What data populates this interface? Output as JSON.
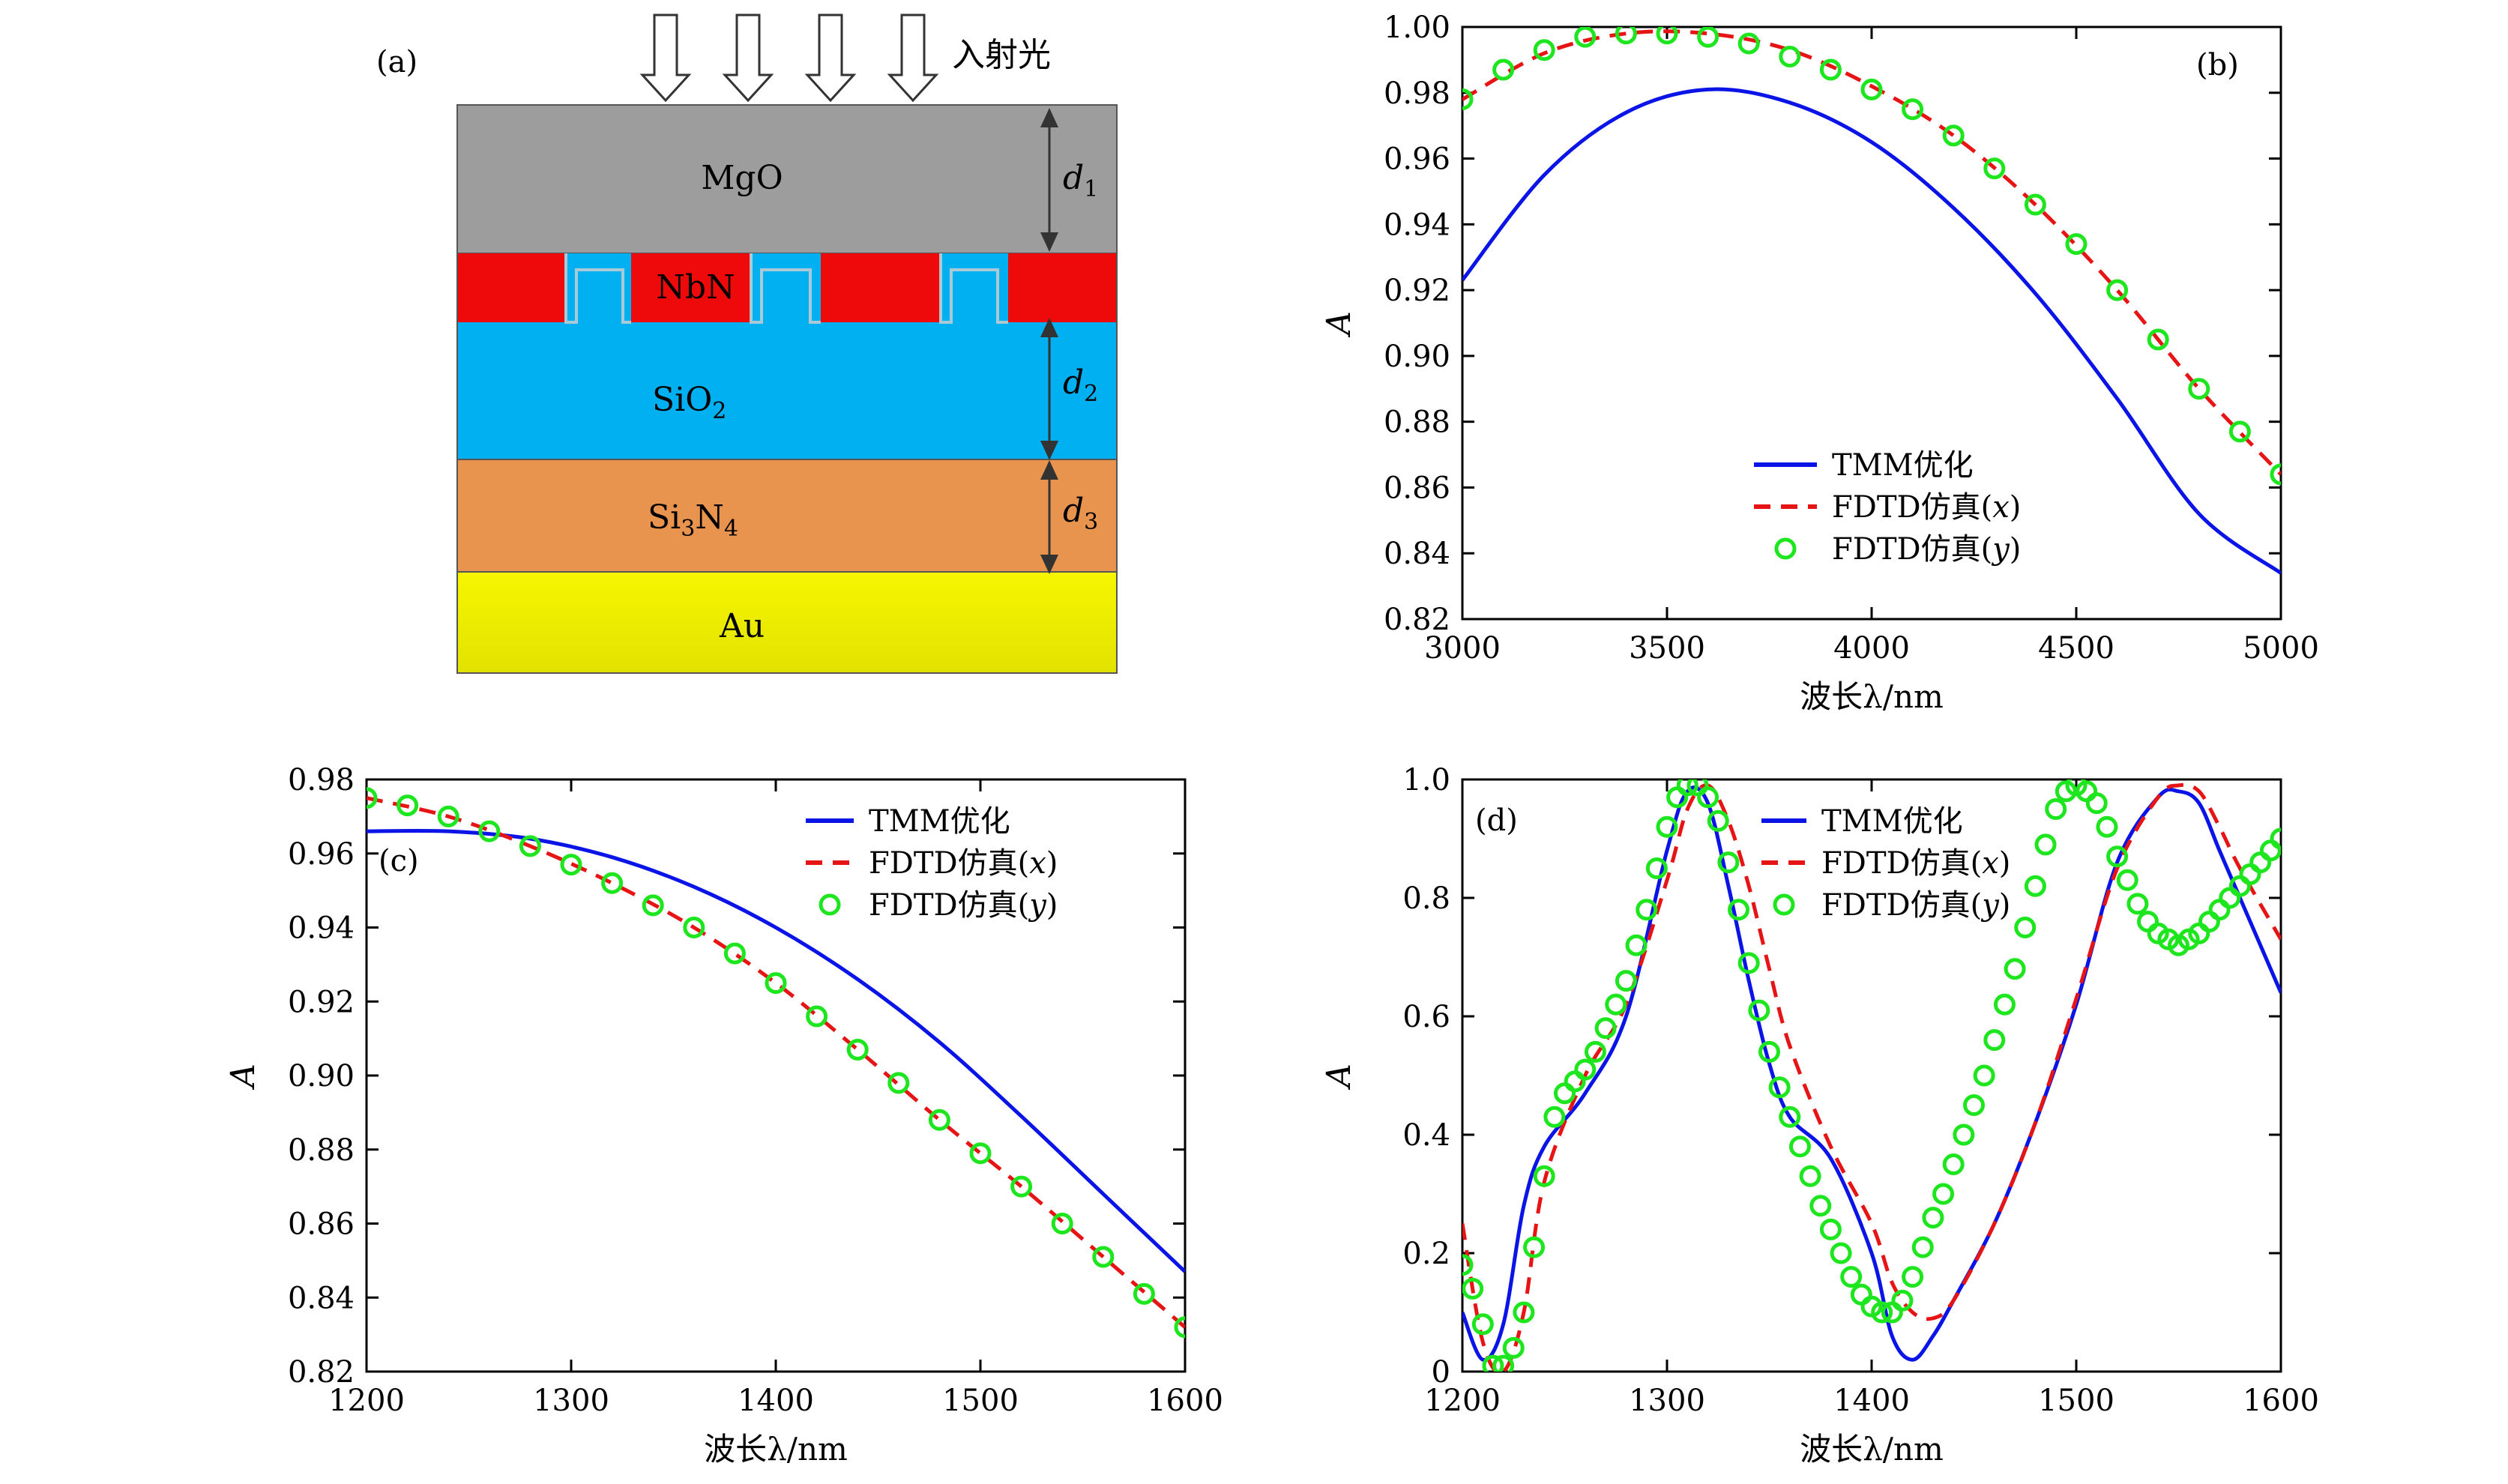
{
  "panel_a": {
    "letter": "(a)",
    "incident_label": "入射光",
    "layers": {
      "mgo": {
        "label": "MgO",
        "color": "#9d9d9d"
      },
      "nbn": {
        "label": "NbN",
        "color": "#ee0a0a"
      },
      "sio2": {
        "label_main": "SiO",
        "label_sub": "2",
        "color": "#00b0f0"
      },
      "si3n4": {
        "label_a": "Si",
        "label_b": "3",
        "label_c": "N",
        "label_d": "4",
        "color": "#e9944e"
      },
      "au": {
        "label": "Au",
        "color": "#f2f200"
      }
    },
    "dims": [
      {
        "sym": "d",
        "sub": "1"
      },
      {
        "sym": "d",
        "sub": "2"
      },
      {
        "sym": "d",
        "sub": "3"
      }
    ]
  },
  "legend": {
    "tmm": "TMM优化",
    "fdtd_x_prefix": "FDTD仿真(",
    "fdtd_x_var": "x",
    "fdtd_y_var": "y",
    "close": ")"
  },
  "colors": {
    "tmm": "#0a14e6",
    "fdtd_x": "#e61414",
    "fdtd_y": "#1ee61e"
  },
  "chart_data": [
    {
      "panel": "(b)",
      "type": "line",
      "xlabel": "波长λ/nm",
      "ylabel": "A",
      "xlim": [
        3000,
        5000
      ],
      "ylim": [
        0.82,
        1.0
      ],
      "xticks": [
        "3000",
        "3500",
        "4000",
        "4500",
        "5000"
      ],
      "yticks": [
        "0.82",
        "0.84",
        "0.86",
        "0.88",
        "0.90",
        "0.92",
        "0.94",
        "0.96",
        "0.98",
        "1.00"
      ],
      "legend_position": "lower-center",
      "series": [
        {
          "name": "TMM优化",
          "style": "solid",
          "x": [
            3000,
            3200,
            3400,
            3600,
            3800,
            4000,
            4200,
            4400,
            4600,
            4800,
            5000
          ],
          "values": [
            0.923,
            0.955,
            0.974,
            0.981,
            0.977,
            0.965,
            0.945,
            0.919,
            0.887,
            0.852,
            0.834
          ]
        },
        {
          "name": "FDTD仿真(x)",
          "style": "dashed",
          "x": [
            3000,
            3200,
            3400,
            3600,
            3800,
            4000,
            4200,
            4400,
            4600,
            4800,
            5000
          ],
          "values": [
            0.978,
            0.992,
            0.998,
            0.998,
            0.993,
            0.982,
            0.967,
            0.946,
            0.92,
            0.89,
            0.864
          ]
        },
        {
          "name": "FDTD仿真(y)",
          "style": "markers",
          "x": [
            3000,
            3100,
            3200,
            3300,
            3400,
            3500,
            3600,
            3700,
            3800,
            3900,
            4000,
            4100,
            4200,
            4300,
            4400,
            4500,
            4600,
            4700,
            4800,
            4900,
            5000
          ],
          "values": [
            0.978,
            0.987,
            0.993,
            0.997,
            0.998,
            0.998,
            0.997,
            0.995,
            0.991,
            0.987,
            0.981,
            0.975,
            0.967,
            0.957,
            0.946,
            0.934,
            0.92,
            0.905,
            0.89,
            0.877,
            0.864
          ]
        }
      ]
    },
    {
      "panel": "(c)",
      "type": "line",
      "xlabel": "波长λ/nm",
      "ylabel": "A",
      "xlim": [
        1200,
        1600
      ],
      "ylim": [
        0.82,
        0.98
      ],
      "xticks": [
        "1200",
        "1300",
        "1400",
        "1500",
        "1600"
      ],
      "yticks": [
        "0.82",
        "0.84",
        "0.86",
        "0.88",
        "0.90",
        "0.92",
        "0.94",
        "0.96",
        "0.98"
      ],
      "legend_position": "top-right",
      "series": [
        {
          "name": "TMM优化",
          "style": "solid",
          "x": [
            1200,
            1240,
            1280,
            1320,
            1360,
            1400,
            1440,
            1480,
            1520,
            1560,
            1600
          ],
          "values": [
            0.966,
            0.966,
            0.964,
            0.959,
            0.951,
            0.94,
            0.926,
            0.909,
            0.889,
            0.868,
            0.847
          ]
        },
        {
          "name": "FDTD仿真(x)",
          "style": "dashed",
          "x": [
            1200,
            1240,
            1280,
            1320,
            1360,
            1400,
            1440,
            1480,
            1520,
            1560,
            1600
          ],
          "values": [
            0.975,
            0.97,
            0.962,
            0.952,
            0.94,
            0.925,
            0.907,
            0.888,
            0.87,
            0.851,
            0.832
          ]
        },
        {
          "name": "FDTD仿真(y)",
          "style": "markers",
          "x": [
            1200,
            1220,
            1240,
            1260,
            1280,
            1300,
            1320,
            1340,
            1360,
            1380,
            1400,
            1420,
            1440,
            1460,
            1480,
            1500,
            1520,
            1540,
            1560,
            1580,
            1600
          ],
          "values": [
            0.975,
            0.973,
            0.97,
            0.966,
            0.962,
            0.957,
            0.952,
            0.946,
            0.94,
            0.933,
            0.925,
            0.916,
            0.907,
            0.898,
            0.888,
            0.879,
            0.87,
            0.86,
            0.851,
            0.841,
            0.832
          ]
        }
      ]
    },
    {
      "panel": "(d)",
      "type": "line",
      "xlabel": "波长λ/nm",
      "ylabel": "A",
      "xlim": [
        1200,
        1600
      ],
      "ylim": [
        0,
        1.0
      ],
      "xticks": [
        "1200",
        "1300",
        "1400",
        "1500",
        "1600"
      ],
      "yticks": [
        "0",
        "0.2",
        "0.4",
        "0.6",
        "0.8",
        "1.0"
      ],
      "legend_position": "top-center",
      "series": [
        {
          "name": "TMM优化",
          "style": "solid",
          "x": [
            1200,
            1210,
            1220,
            1230,
            1240,
            1260,
            1280,
            1300,
            1310,
            1320,
            1330,
            1340,
            1350,
            1360,
            1380,
            1400,
            1410,
            1420,
            1430,
            1440,
            1460,
            1480,
            1500,
            1520,
            1540,
            1550,
            1560,
            1570,
            1580,
            1600
          ],
          "values": [
            0.1,
            0.02,
            0.08,
            0.28,
            0.38,
            0.47,
            0.6,
            0.88,
            0.98,
            0.96,
            0.82,
            0.66,
            0.52,
            0.43,
            0.36,
            0.2,
            0.06,
            0.02,
            0.06,
            0.12,
            0.25,
            0.42,
            0.62,
            0.86,
            0.97,
            0.98,
            0.96,
            0.88,
            0.8,
            0.64
          ]
        },
        {
          "name": "FDTD仿真(x)",
          "style": "dashed",
          "x": [
            1200,
            1210,
            1220,
            1230,
            1240,
            1260,
            1280,
            1300,
            1310,
            1320,
            1330,
            1340,
            1350,
            1360,
            1380,
            1400,
            1410,
            1420,
            1430,
            1440,
            1460,
            1480,
            1500,
            1520,
            1540,
            1550,
            1560,
            1570,
            1580,
            1600
          ],
          "values": [
            0.25,
            0.05,
            0.0,
            0.1,
            0.32,
            0.5,
            0.62,
            0.83,
            0.95,
            0.99,
            0.93,
            0.82,
            0.68,
            0.55,
            0.38,
            0.25,
            0.15,
            0.1,
            0.09,
            0.12,
            0.25,
            0.42,
            0.63,
            0.85,
            0.97,
            0.99,
            0.98,
            0.92,
            0.85,
            0.73
          ]
        },
        {
          "name": "FDTD仿真(y)",
          "style": "markers",
          "x": [
            1200,
            1205,
            1210,
            1215,
            1220,
            1225,
            1230,
            1235,
            1240,
            1245,
            1250,
            1255,
            1260,
            1265,
            1270,
            1275,
            1280,
            1285,
            1290,
            1295,
            1300,
            1305,
            1310,
            1315,
            1320,
            1325,
            1330,
            1335,
            1340,
            1345,
            1350,
            1355,
            1360,
            1365,
            1370,
            1375,
            1380,
            1385,
            1390,
            1395,
            1400,
            1405,
            1410,
            1415,
            1420,
            1425,
            1430,
            1435,
            1440,
            1445,
            1450,
            1455,
            1460,
            1465,
            1470,
            1475,
            1480,
            1485,
            1490,
            1495,
            1500,
            1505,
            1510,
            1515,
            1520,
            1525,
            1530,
            1535,
            1540,
            1545,
            1550,
            1555,
            1560,
            1565,
            1570,
            1575,
            1580,
            1585,
            1590,
            1595,
            1600
          ],
          "values": [
            0.18,
            0.14,
            0.08,
            0.01,
            0.01,
            0.04,
            0.1,
            0.21,
            0.33,
            0.43,
            0.47,
            0.49,
            0.51,
            0.54,
            0.58,
            0.62,
            0.66,
            0.72,
            0.78,
            0.85,
            0.92,
            0.97,
            0.99,
            0.99,
            0.97,
            0.93,
            0.86,
            0.78,
            0.69,
            0.61,
            0.54,
            0.48,
            0.43,
            0.38,
            0.33,
            0.28,
            0.24,
            0.2,
            0.16,
            0.13,
            0.11,
            0.1,
            0.1,
            0.12,
            0.16,
            0.21,
            0.26,
            0.3,
            0.35,
            0.4,
            0.45,
            0.5,
            0.56,
            0.62,
            0.68,
            0.75,
            0.82,
            0.89,
            0.95,
            0.98,
            0.99,
            0.98,
            0.96,
            0.92,
            0.87,
            0.83,
            0.79,
            0.76,
            0.74,
            0.73,
            0.72,
            0.73,
            0.74,
            0.76,
            0.78,
            0.8,
            0.82,
            0.84,
            0.86,
            0.88,
            0.9
          ]
        }
      ]
    }
  ]
}
